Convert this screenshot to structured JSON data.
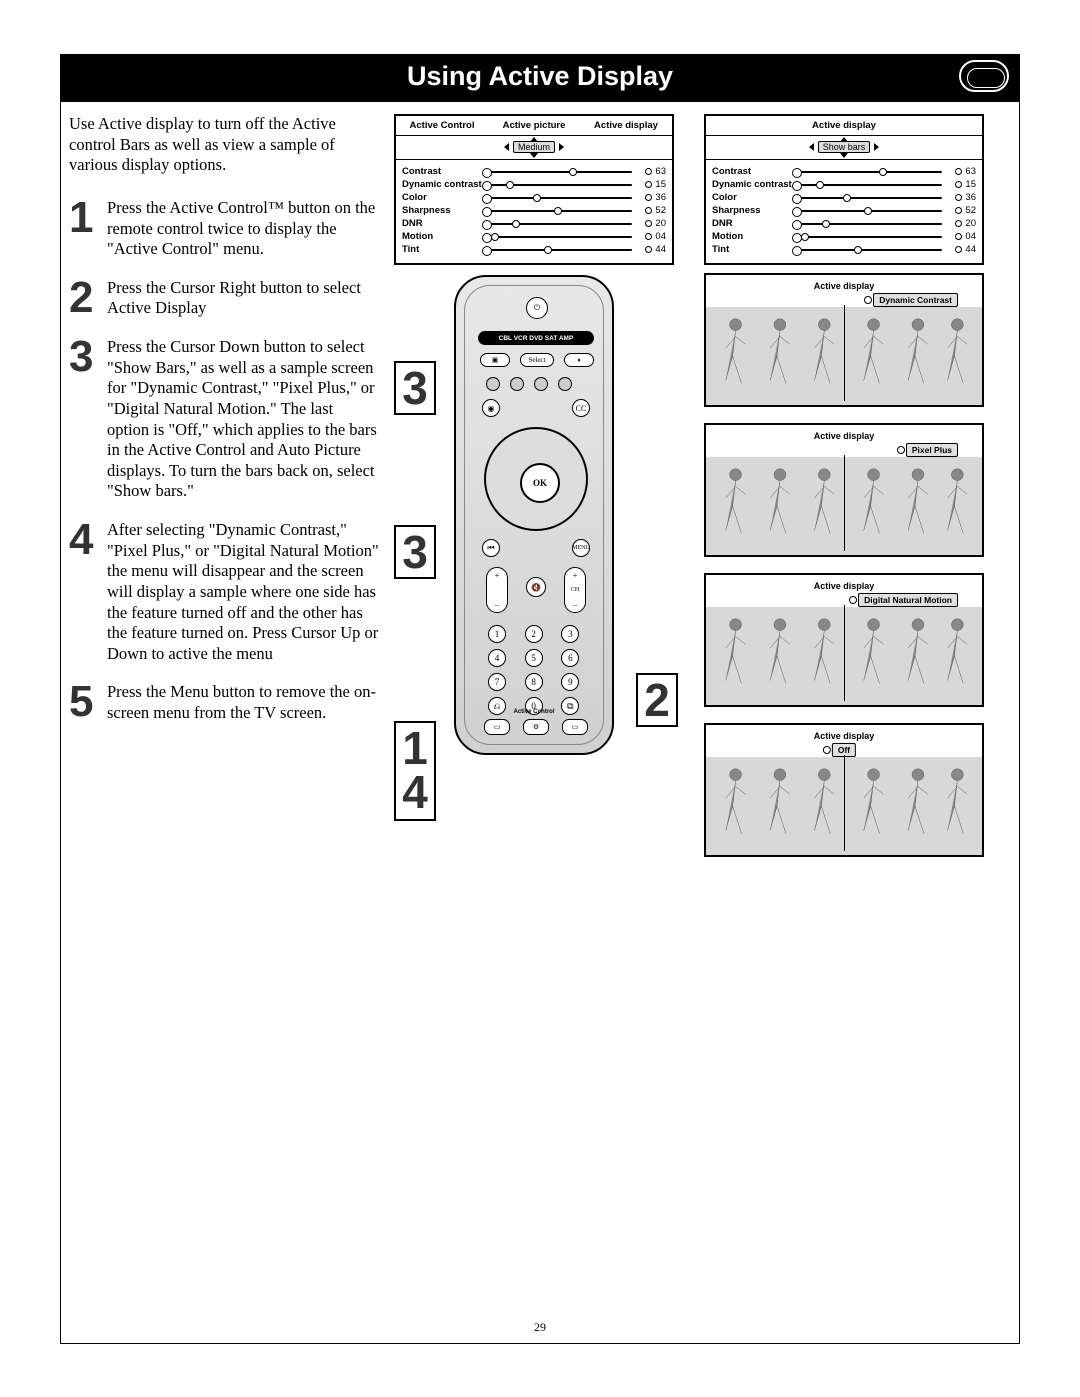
{
  "page_number": "29",
  "title": "Using Active Display",
  "intro": "Use Active display to turn off the Active control Bars as well as view a sample of various display options.",
  "steps": [
    {
      "n": "1",
      "text": "Press the Active Control™ button on the remote control twice to display the \"Active Control\" menu."
    },
    {
      "n": "2",
      "text": "Press the Cursor Right button to select Active Display"
    },
    {
      "n": "3",
      "text": "Press the Cursor Down button to select \"Show Bars,\" as well as a sample screen for \"Dynamic Contrast,\" \"Pixel Plus,\" or \"Digital Natural Motion.\" The last option is \"Off,\" which applies to the bars in the Active Control and Auto Picture displays.  To turn the bars back on, select \"Show bars.\""
    },
    {
      "n": "4",
      "text": "After selecting \"Dynamic Contrast,\" \"Pixel Plus,\" or \"Digital Natural Motion\" the menu will disappear and the screen will display a sample where one side has the feature turned off and the other has the feature turned on. Press Cursor Up or Down to active the menu"
    },
    {
      "n": "5",
      "text": "Press the Menu button to remove the on-screen menu from the TV screen."
    }
  ],
  "menu1": {
    "headers": [
      "Active Control",
      "Active picture",
      "Active display"
    ],
    "selected": "Medium",
    "rows": [
      {
        "label": "Contrast",
        "val": "63",
        "pct": 63
      },
      {
        "label": "Dynamic contrast",
        "val": "15",
        "pct": 15
      },
      {
        "label": "Color",
        "val": "36",
        "pct": 36
      },
      {
        "label": "Sharpness",
        "val": "52",
        "pct": 52
      },
      {
        "label": "DNR",
        "val": "20",
        "pct": 20
      },
      {
        "label": "Motion",
        "val": "04",
        "pct": 4
      },
      {
        "label": "Tint",
        "val": "44",
        "pct": 44
      }
    ]
  },
  "menu2": {
    "header_center": "Active display",
    "selected": "Show bars",
    "rows_same": true
  },
  "remote": {
    "strip": "CBL VCR DVD SAT AMP",
    "ok": "OK",
    "select": "Select",
    "cc": "CC",
    "menu": "MENU",
    "ch": "CH",
    "numbers": [
      "1",
      "2",
      "3",
      "4",
      "5",
      "6",
      "7",
      "8",
      "9",
      "",
      "0",
      ""
    ],
    "active_control": "Active Control"
  },
  "callouts": {
    "c2": "2",
    "c3a": "3",
    "c3b": "3",
    "c14a": "1",
    "c14b": "4"
  },
  "previews": [
    {
      "top": "Active display",
      "pill": "Dynamic Contrast",
      "pill_right": true
    },
    {
      "top": "Active display",
      "pill": "Pixel Plus",
      "pill_right": true
    },
    {
      "top": "Active display",
      "pill": "Digital Natural Motion",
      "pill_right": true
    },
    {
      "top": "Active display",
      "pill": "Off",
      "pill_center": true
    }
  ]
}
